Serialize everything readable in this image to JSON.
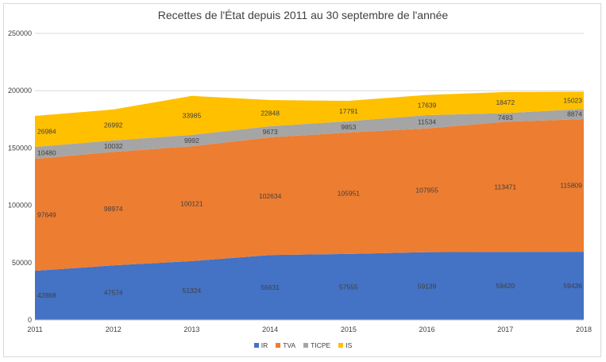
{
  "chart_data": {
    "type": "area",
    "stacked": true,
    "title": "Recettes de l'État depuis  2011 au 30 septembre de l'année",
    "xlabel": "",
    "ylabel": "",
    "x": [
      "2011",
      "2012",
      "2013",
      "2014",
      "2015",
      "2016",
      "2017",
      "2018"
    ],
    "ylim": [
      0,
      250000
    ],
    "yticks": [
      "0",
      "50000",
      "100000",
      "150000",
      "200000",
      "250000"
    ],
    "yticks_values": [
      0,
      50000,
      100000,
      150000,
      200000,
      250000
    ],
    "grid": true,
    "legend_position": "bottom",
    "series": [
      {
        "name": "IR",
        "color": "#4472C4",
        "values": [
          42868,
          47574,
          51324,
          56631,
          57555,
          59139,
          59420,
          59436
        ]
      },
      {
        "name": "TVA",
        "color": "#ED7D31",
        "values": [
          97649,
          98974,
          100121,
          102634,
          105951,
          107955,
          113471,
          115809
        ]
      },
      {
        "name": "TICPE",
        "color": "#A5A5A5",
        "values": [
          10480,
          10032,
          9992,
          9673,
          9853,
          11534,
          7493,
          8874
        ]
      },
      {
        "name": "IS",
        "color": "#FFC000",
        "values": [
          26984,
          26992,
          33985,
          22848,
          17791,
          17639,
          18472,
          15023
        ]
      }
    ]
  }
}
